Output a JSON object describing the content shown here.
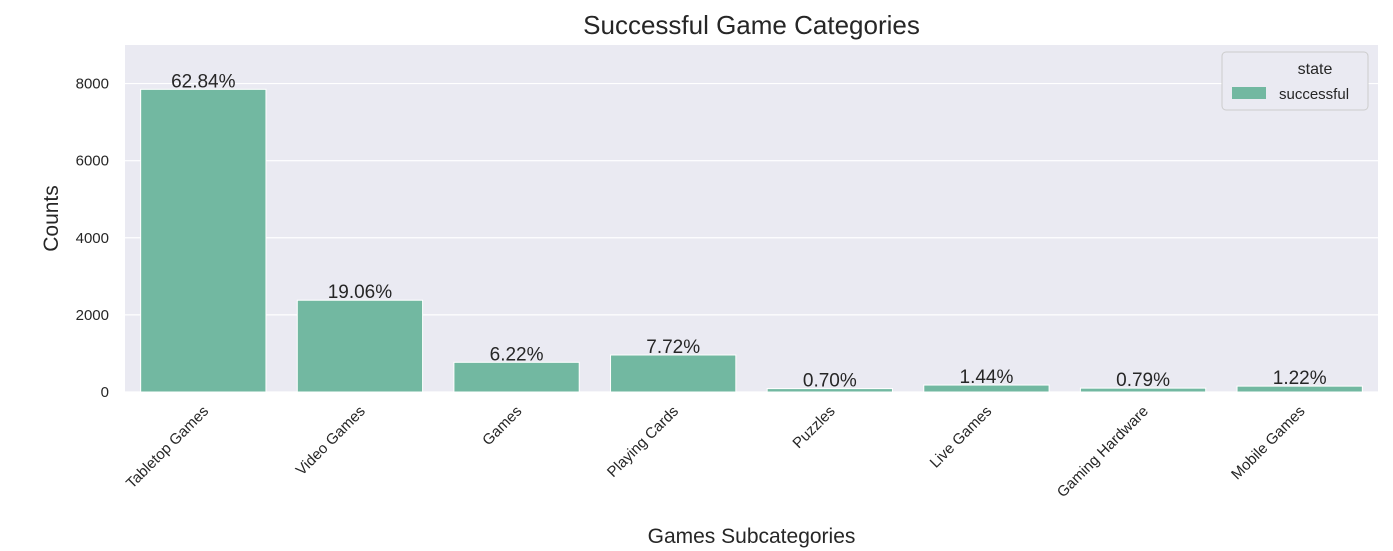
{
  "chart_data": {
    "type": "bar",
    "title": "Successful Game Categories",
    "xlabel": "Games Subcategories",
    "ylabel": "Counts",
    "categories": [
      "Tabletop Games",
      "Video Games",
      "Games",
      "Playing Cards",
      "Puzzles",
      "Live Games",
      "Gaming Hardware",
      "Mobile Games"
    ],
    "series": [
      {
        "name": "successful",
        "values": [
          7850,
          2380,
          770,
          960,
          88,
          180,
          100,
          152
        ],
        "labels": [
          "62.84%",
          "19.06%",
          "6.22%",
          "7.72%",
          "0.70%",
          "1.44%",
          "0.79%",
          "1.22%"
        ]
      }
    ],
    "ylim": [
      0,
      9000
    ],
    "yticks": [
      0,
      2000,
      4000,
      6000,
      8000
    ],
    "grid": true,
    "legend": {
      "title": "state",
      "position": "top-right"
    },
    "colors": {
      "bar": "#72b8a1",
      "background": "#eaeaf2",
      "grid": "#ffffff"
    }
  }
}
